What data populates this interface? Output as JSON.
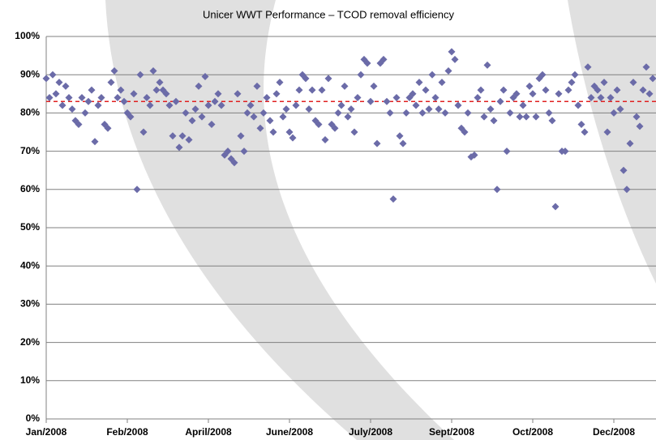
{
  "chart_data": {
    "type": "scatter",
    "title": "Unicer WWT Performance – TCOD removal efficiency",
    "x": [
      0,
      2,
      4,
      6,
      8,
      10,
      12,
      14,
      16,
      18,
      20,
      22,
      24,
      26,
      28,
      30,
      32,
      34,
      36,
      38,
      40,
      42,
      44,
      46,
      48,
      50,
      52,
      54,
      56,
      58,
      60,
      62,
      64,
      66,
      68,
      70,
      72,
      74,
      76,
      78,
      80,
      82,
      84,
      86,
      88,
      90,
      92,
      94,
      96,
      98,
      100,
      102,
      104,
      106,
      108,
      110,
      112,
      114,
      116,
      118,
      120,
      122,
      124,
      126,
      128,
      130,
      132,
      134,
      136,
      138,
      140,
      142,
      144,
      146,
      148,
      150,
      152,
      154,
      156,
      158,
      160,
      162,
      164,
      166,
      168,
      170,
      172,
      174,
      176,
      178,
      180,
      182,
      184,
      186,
      188,
      190,
      192,
      194,
      196,
      198,
      200,
      202,
      204,
      206,
      208,
      210,
      212,
      214,
      216,
      218,
      220,
      222,
      224,
      226,
      228,
      230,
      232,
      234,
      236,
      238,
      240,
      242,
      244,
      246,
      248,
      250,
      252,
      254,
      256,
      258,
      260,
      262,
      264,
      266,
      268,
      270,
      272,
      274,
      276,
      278,
      280,
      282,
      284,
      286,
      288,
      290,
      292,
      294,
      296,
      298,
      300,
      302,
      304,
      306,
      308,
      310,
      312,
      314,
      316,
      318,
      320,
      322,
      324,
      326,
      328,
      330,
      332,
      334,
      336,
      338,
      340,
      342,
      344,
      346,
      348,
      350,
      352,
      354,
      356,
      358,
      360,
      362,
      364,
      366,
      368,
      370,
      372,
      374
    ],
    "series": [
      {
        "color": "#6b6ba8",
        "values": [
          89,
          84,
          90,
          85,
          88,
          82,
          87,
          84,
          81,
          78,
          77,
          84,
          80,
          83,
          86,
          72.5,
          82,
          84,
          77,
          76,
          88,
          91,
          84,
          86,
          83,
          80,
          79,
          85,
          60,
          90,
          75,
          84,
          82,
          91,
          86,
          88,
          86,
          85,
          82,
          74,
          83,
          71,
          74,
          80,
          73,
          78,
          81,
          87,
          79,
          89.5,
          82,
          77,
          83,
          85,
          82,
          69,
          70,
          68,
          67,
          85,
          74,
          70,
          80,
          82,
          79,
          87,
          76,
          80,
          84,
          78,
          75,
          85,
          88,
          79,
          81,
          75,
          73.5,
          82,
          86,
          90,
          89,
          81,
          86,
          78,
          77,
          86,
          73,
          89,
          77,
          76,
          80,
          82,
          87,
          79,
          81,
          75,
          84,
          90,
          94,
          93,
          83,
          87,
          72,
          93,
          94,
          83,
          80,
          57.5,
          84,
          74,
          72,
          80,
          84,
          85,
          82,
          88,
          80,
          86,
          81,
          90,
          84,
          81,
          88,
          80,
          91,
          96,
          94,
          82,
          76,
          75,
          80,
          68.5,
          69,
          84,
          86,
          79,
          92.5,
          81,
          78,
          60,
          83,
          86,
          70,
          80,
          84,
          85,
          79,
          82,
          79,
          87,
          85,
          79,
          89,
          90,
          86,
          80,
          78,
          55.5,
          85,
          70,
          70,
          86,
          88,
          90,
          82,
          77,
          75,
          92,
          84,
          87,
          86,
          84,
          88,
          75,
          84,
          80,
          86,
          81,
          65,
          60,
          72,
          88,
          79,
          76.5,
          86,
          92,
          85,
          89
        ]
      }
    ],
    "xlim": [
      0,
      376
    ],
    "xticks": [
      {
        "value": 0,
        "label": "Jan/2008"
      },
      {
        "value": 50,
        "label": "Feb/2008"
      },
      {
        "value": 100,
        "label": "April/2008"
      },
      {
        "value": 150,
        "label": "June/2008"
      },
      {
        "value": 200,
        "label": "July/2008"
      },
      {
        "value": 250,
        "label": "Sept/2008"
      },
      {
        "value": 300,
        "label": "Oct/2008"
      },
      {
        "value": 350,
        "label": "Dec/2008"
      }
    ],
    "ylim": [
      0,
      100
    ],
    "yticks": [
      {
        "value": 0,
        "label": "0%"
      },
      {
        "value": 10,
        "label": "10%"
      },
      {
        "value": 20,
        "label": "20%"
      },
      {
        "value": 30,
        "label": "30%"
      },
      {
        "value": 40,
        "label": "40%"
      },
      {
        "value": 50,
        "label": "50%"
      },
      {
        "value": 60,
        "label": "60%"
      },
      {
        "value": 70,
        "label": "70%"
      },
      {
        "value": 80,
        "label": "80%"
      },
      {
        "value": 90,
        "label": "90%"
      },
      {
        "value": 100,
        "label": "100%"
      }
    ],
    "reference_line": {
      "value": 83,
      "color": "#e02020"
    },
    "grid": true
  }
}
